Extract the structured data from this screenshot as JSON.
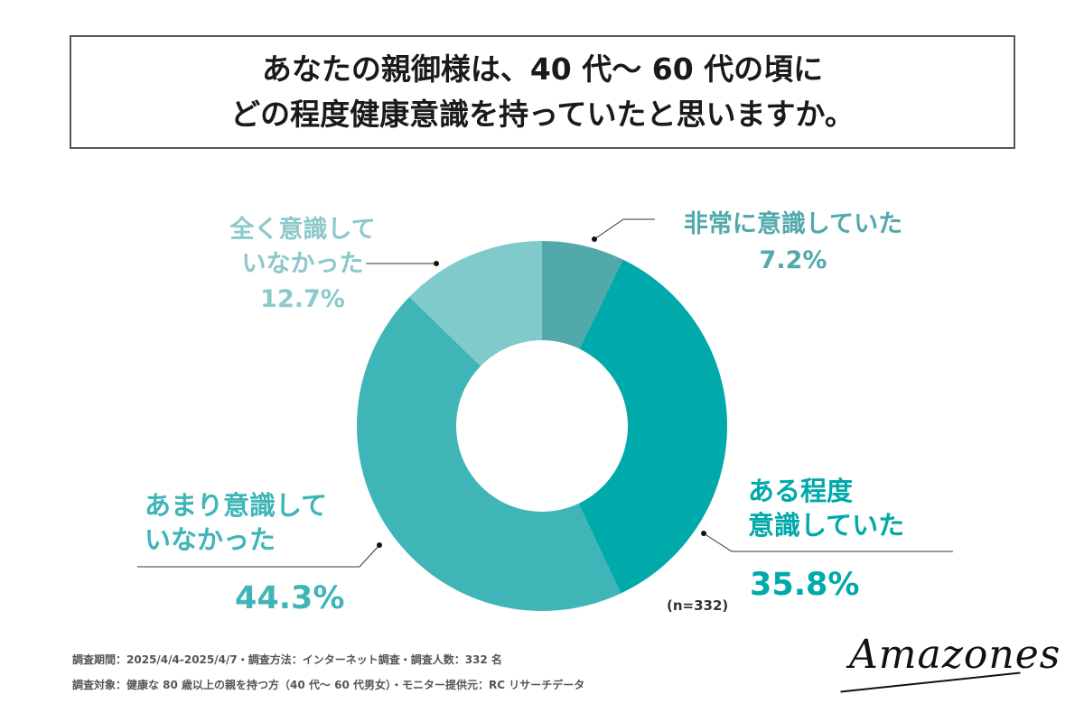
{
  "title": {
    "line1": "あなたの親御様は、40 代〜 60 代の頃に",
    "line2": "どの程度健康意識を持っていたと思いますか。"
  },
  "chart_data": {
    "type": "pie",
    "donut": true,
    "categories": [
      "非常に意識していた",
      "ある程度意識していた",
      "あまり意識していなかった",
      "全く意識していなかった"
    ],
    "values": [
      7.2,
      35.8,
      44.3,
      12.7
    ],
    "unit": "%",
    "colors": [
      "#52a9ab",
      "#00a9aa",
      "#3fb5b8",
      "#80cacb"
    ],
    "sample_size": "(n=332)"
  },
  "labels": {
    "high": {
      "line1": "非常に意識していた",
      "pct": "7.2%"
    },
    "some": {
      "line1": "ある程度",
      "line2": "意識していた",
      "pct": "35.8%"
    },
    "low": {
      "line1": "あまり意識して",
      "line2": "いなかった",
      "pct": "44.3%"
    },
    "none": {
      "line1": "全く意識して",
      "line2": "いなかった",
      "pct": "12.7%"
    }
  },
  "footer": {
    "line1": "調査期間：2025/4/4-2025/4/7・調査方法：インターネット調査・調査人数：332 名",
    "line2": "調査対象：健康な 80 歳以上の親を持つ方（40 代〜 60 代男女）・モニター提供元：RC リサーチデータ"
  },
  "logo": "Amazones"
}
